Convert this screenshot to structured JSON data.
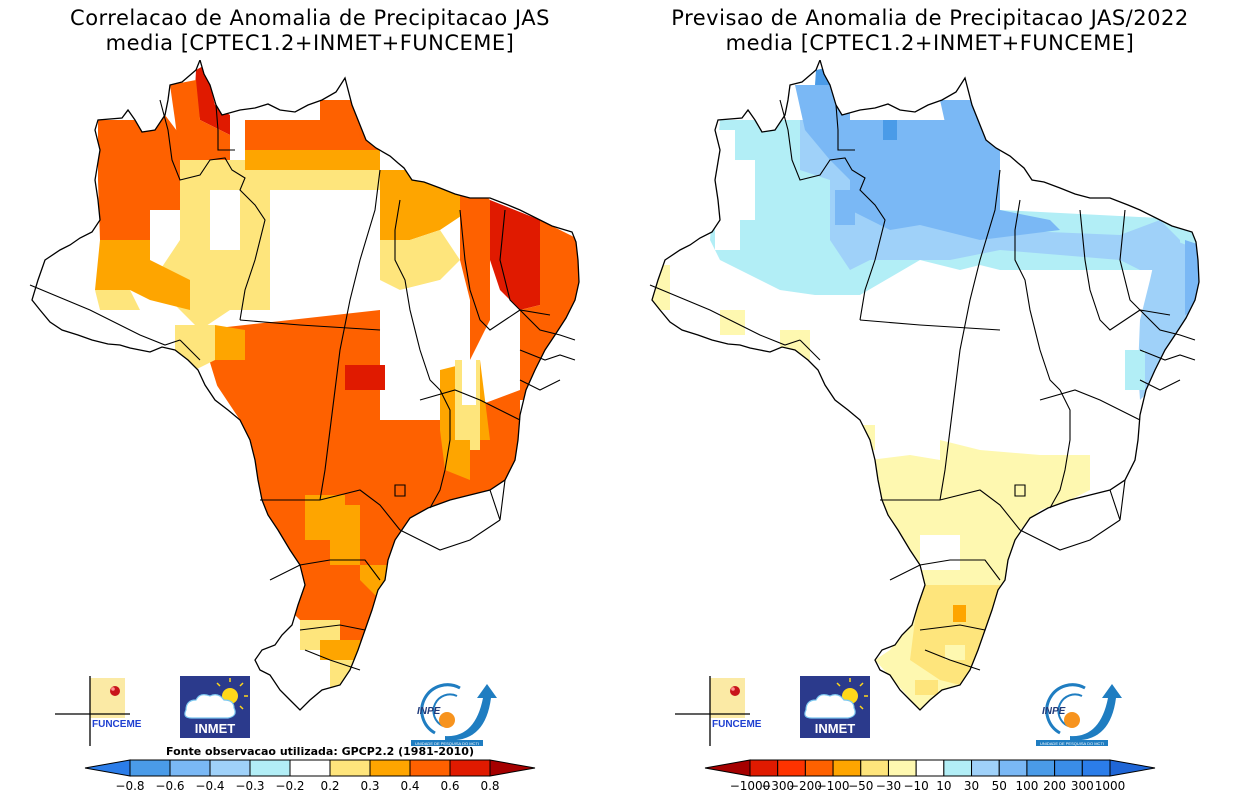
{
  "panels": [
    {
      "id": "left",
      "title_line1": "Correlacao de Anomalia de Precipitacao JAS",
      "title_line2": "media [CPTEC1.2+INMET+FUNCEME]",
      "source_note": "Fonte observacao utilizada: GPCP2.2 (1981-2010)",
      "colorbar": {
        "type": "correlation",
        "labels": [
          "-0.8",
          "-0.6",
          "-0.4",
          "-0.3",
          "-0.2",
          "0.2",
          "0.3",
          "0.4",
          "0.6",
          "0.8"
        ],
        "colors": [
          "#2b7de9",
          "#4a9be8",
          "#7ab8f5",
          "#9fd1f9",
          "#b2eef6",
          "#ffffff",
          "#fee57c",
          "#fea500",
          "#fe6100",
          "#e01a00",
          "#a50000"
        ]
      }
    },
    {
      "id": "right",
      "title_line1": "Previsao de Anomalia de Precipitacao JAS/2022",
      "title_line2": "media [CPTEC1.2+INMET+FUNCEME]",
      "source_note": "",
      "colorbar": {
        "type": "anomaly_mm",
        "labels": [
          "-1000",
          "-300",
          "-200",
          "-100",
          "-50",
          "-30",
          "-10",
          "10",
          "30",
          "50",
          "100",
          "200",
          "300",
          "1000"
        ],
        "colors": [
          "#a50000",
          "#e01a00",
          "#fe3300",
          "#fe6100",
          "#fea500",
          "#fee57c",
          "#fef8b0",
          "#ffffff",
          "#b2eef6",
          "#9fd1f9",
          "#7ab8f5",
          "#4a9be8",
          "#3a8de8",
          "#2b7de9",
          "#1f66d6"
        ]
      }
    }
  ],
  "logos": {
    "funceme": "FUNCEME",
    "inmet": "INMET",
    "inpe": "INPE",
    "inpe_caption": "UNIDADE DE PESQUISA DO MCTI"
  },
  "map_regions": {
    "left": [
      {
        "region": "north-roraima-tip",
        "category": "0.6"
      },
      {
        "region": "northwest-amazonas",
        "category": "0.4"
      },
      {
        "region": "western-amazonas-edge",
        "category": "0.2"
      },
      {
        "region": "central-amazonas",
        "category": "neutral"
      },
      {
        "region": "para-interior",
        "category": "neutral"
      },
      {
        "region": "amapa",
        "category": "0.4"
      },
      {
        "region": "maranhao-coast",
        "category": "0.3"
      },
      {
        "region": "ceara",
        "category": "0.6"
      },
      {
        "region": "northeast-coast",
        "category": "0.4"
      },
      {
        "region": "center-west",
        "category": "0.4"
      },
      {
        "region": "southeast",
        "category": "0.4"
      },
      {
        "region": "south-parana-santa-catarina",
        "category": "0.4"
      },
      {
        "region": "rio-grande-do-sul",
        "category": "neutral"
      },
      {
        "region": "acre-rondonia",
        "category": "neutral"
      }
    ],
    "right": [
      {
        "region": "roraima",
        "category": "100"
      },
      {
        "region": "north-para-amapa",
        "category": "100"
      },
      {
        "region": "amazonas-central",
        "category": "10"
      },
      {
        "region": "para-south-band",
        "category": "10"
      },
      {
        "region": "northeast-coast",
        "category": "50"
      },
      {
        "region": "center",
        "category": "neutral"
      },
      {
        "region": "southeast-interior",
        "category": "-10"
      },
      {
        "region": "mato-grosso-do-sul",
        "category": "-10"
      },
      {
        "region": "parana",
        "category": "-30"
      },
      {
        "region": "parana-west-spot",
        "category": "-50"
      },
      {
        "region": "santa-catarina-rs",
        "category": "-30"
      },
      {
        "region": "rio-grande-do-sul",
        "category": "-10"
      }
    ]
  }
}
